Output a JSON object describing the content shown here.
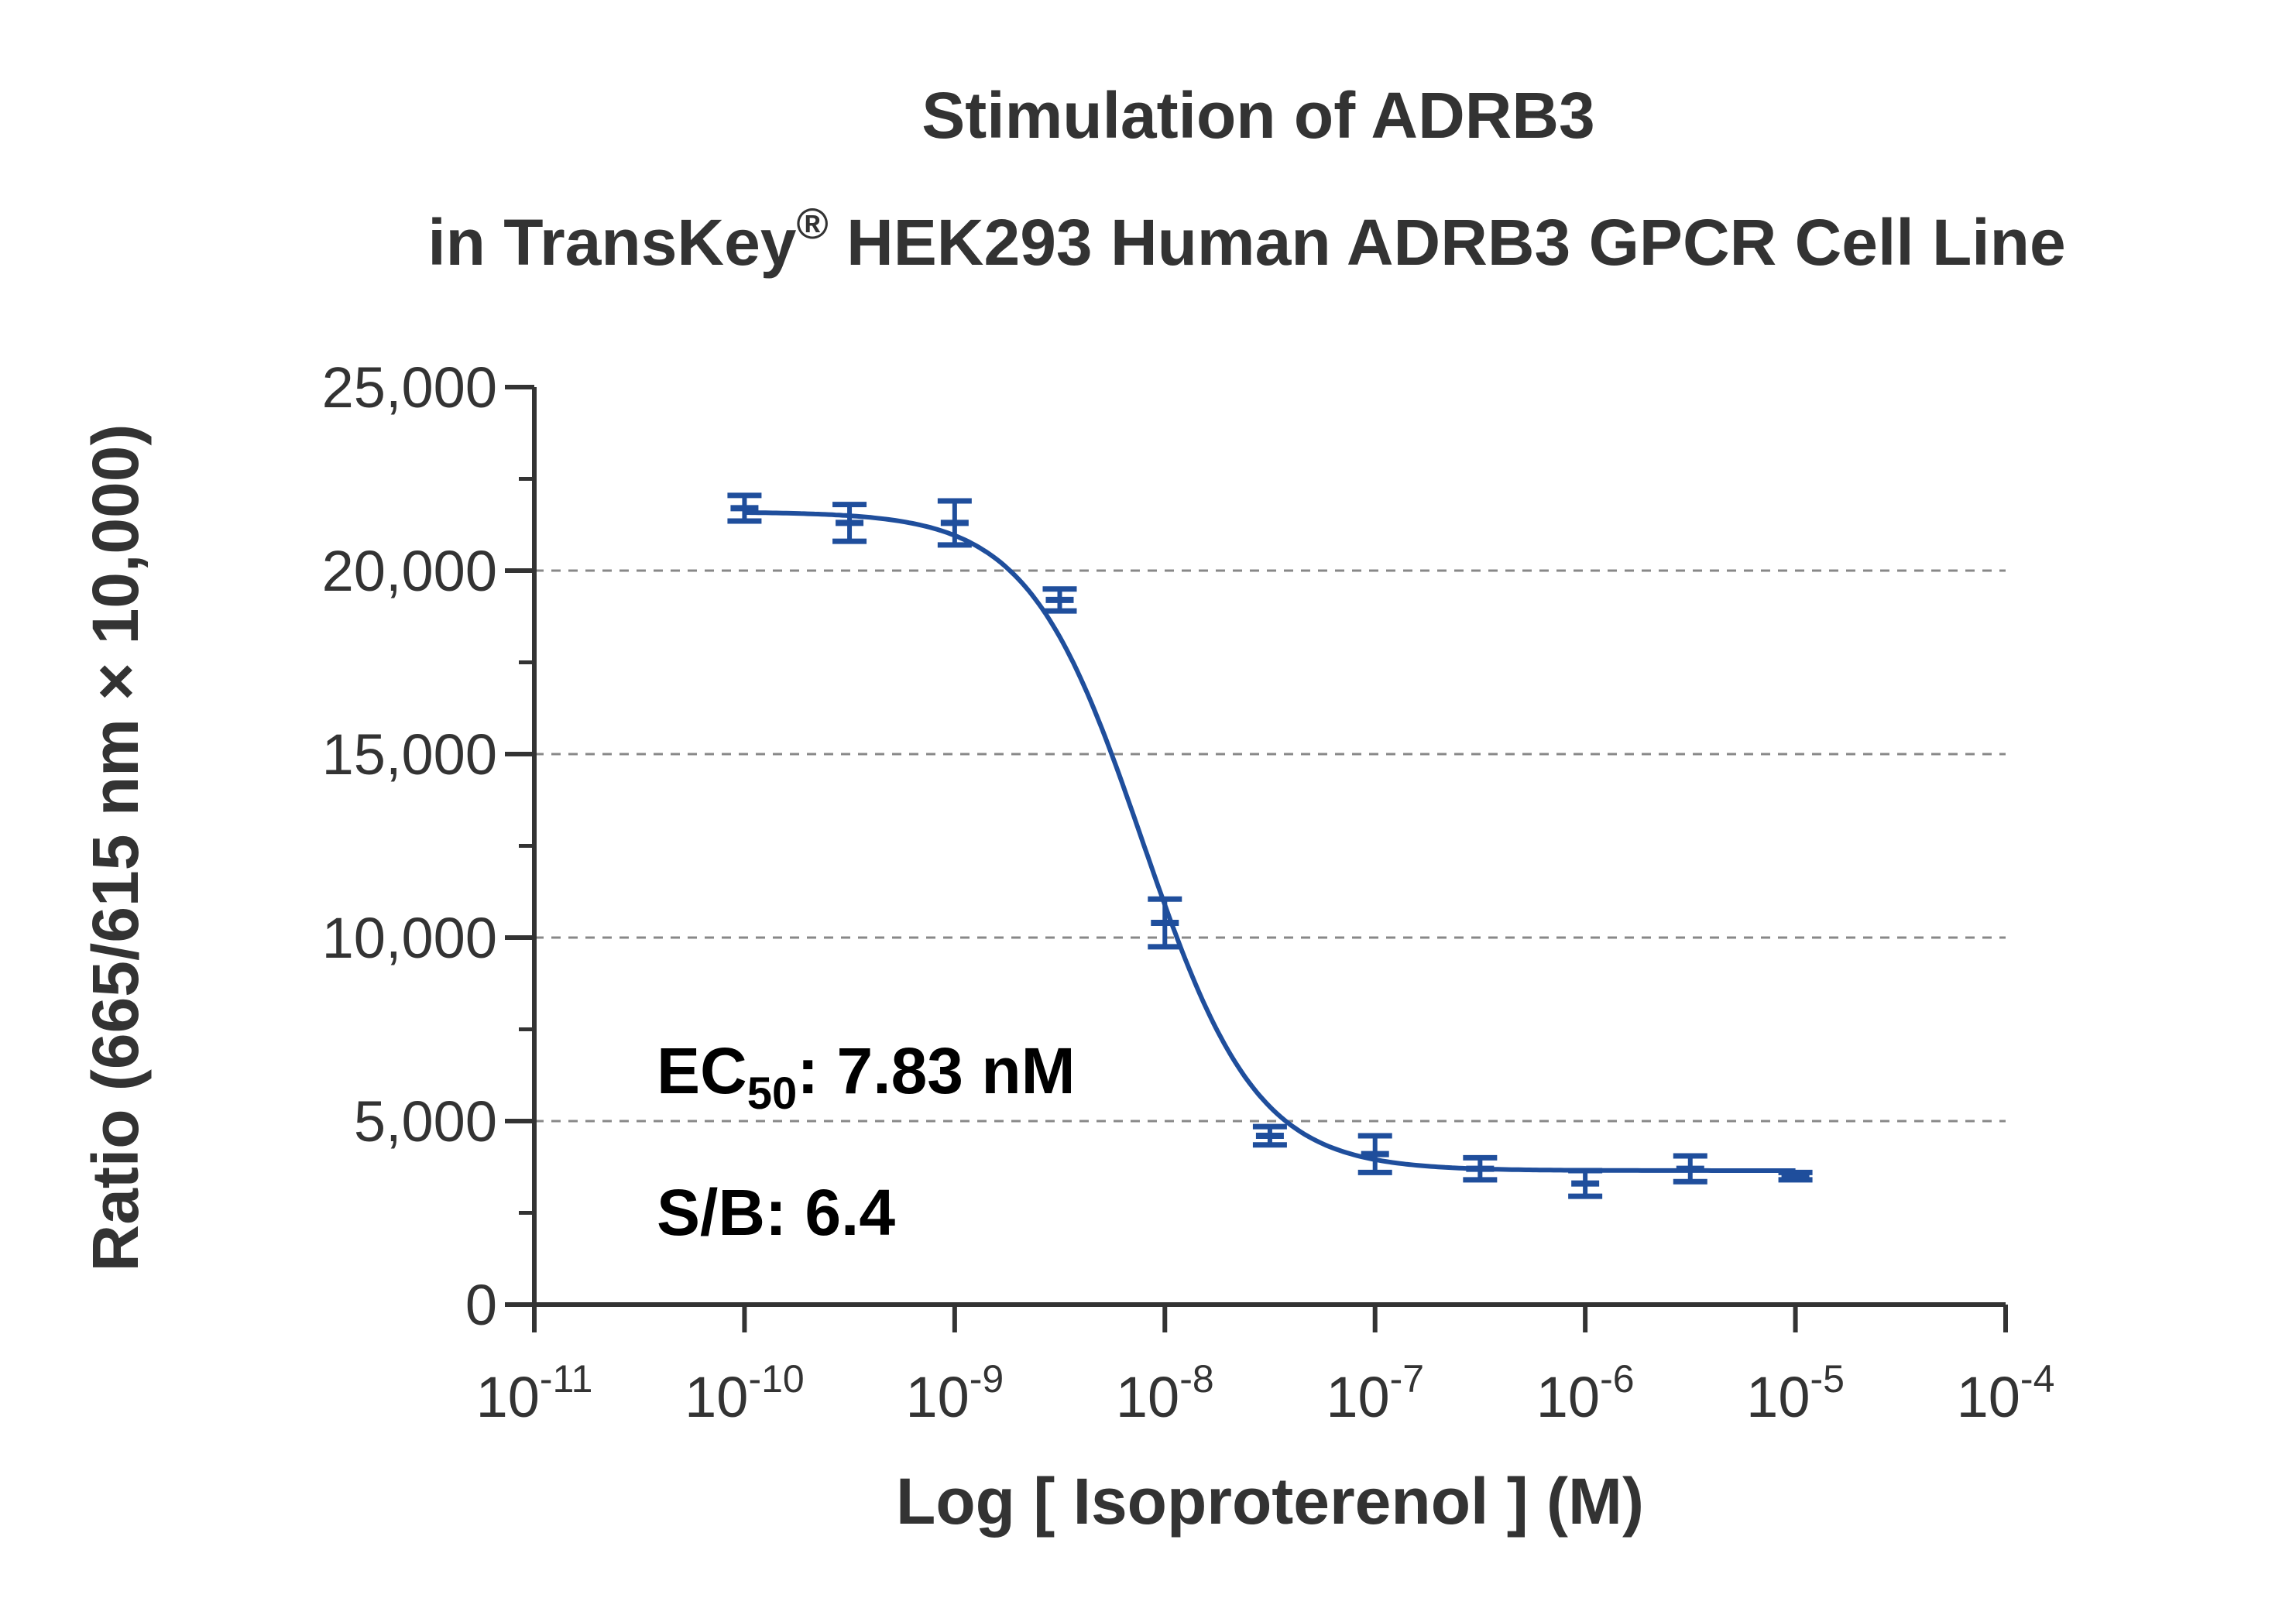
{
  "chart_data": {
    "type": "scatter",
    "title_line1": "Stimulation of  ADRB3",
    "title_line2_pre": "in TransKey",
    "title_line2_sup": "®",
    "title_line2_post": " HEK293 Human ADRB3 GPCR Cell Line",
    "xlabel": "Log [ Isoproterenol ]  (M)",
    "ylabel": "Ratio (665/615 nm × 10,000)",
    "x_scale": "log",
    "xlim_exponent": [
      -11,
      -4
    ],
    "ylim": [
      0,
      25000
    ],
    "x_tick_base": "10",
    "x_tick_exponents": [
      "-11",
      "-10",
      "-9",
      "-8",
      "-7",
      "-6",
      "-5",
      "-4"
    ],
    "y_ticks": [
      0,
      5000,
      10000,
      15000,
      20000,
      25000
    ],
    "y_tick_labels": [
      "0",
      "5,000",
      "10,000",
      "15,000",
      "20,000",
      "25,000"
    ],
    "grid": "horizontal-dashed",
    "series": [
      {
        "color": "#1f4e9c",
        "x": [
          1e-10,
          3.16e-10,
          1e-09,
          3.16e-09,
          1e-08,
          3.16e-08,
          1e-07,
          3.16e-07,
          1e-06,
          3.16e-06,
          1e-05
        ],
        "y": [
          21700,
          21300,
          21300,
          19200,
          10400,
          4600,
          4100,
          3700,
          3300,
          3700,
          3500
        ],
        "err": [
          350,
          500,
          600,
          300,
          650,
          250,
          500,
          300,
          350,
          350,
          100
        ]
      }
    ],
    "fit": {
      "model": "4PL",
      "top": 21600,
      "bottom": 3650,
      "ec50": 7.83e-09,
      "hill": 1.6
    },
    "annotations": {
      "ec50_main": "EC",
      "ec50_sub": "50",
      "ec50_value": ": 7.83 nM",
      "sb": "S/B: 6.4"
    }
  }
}
